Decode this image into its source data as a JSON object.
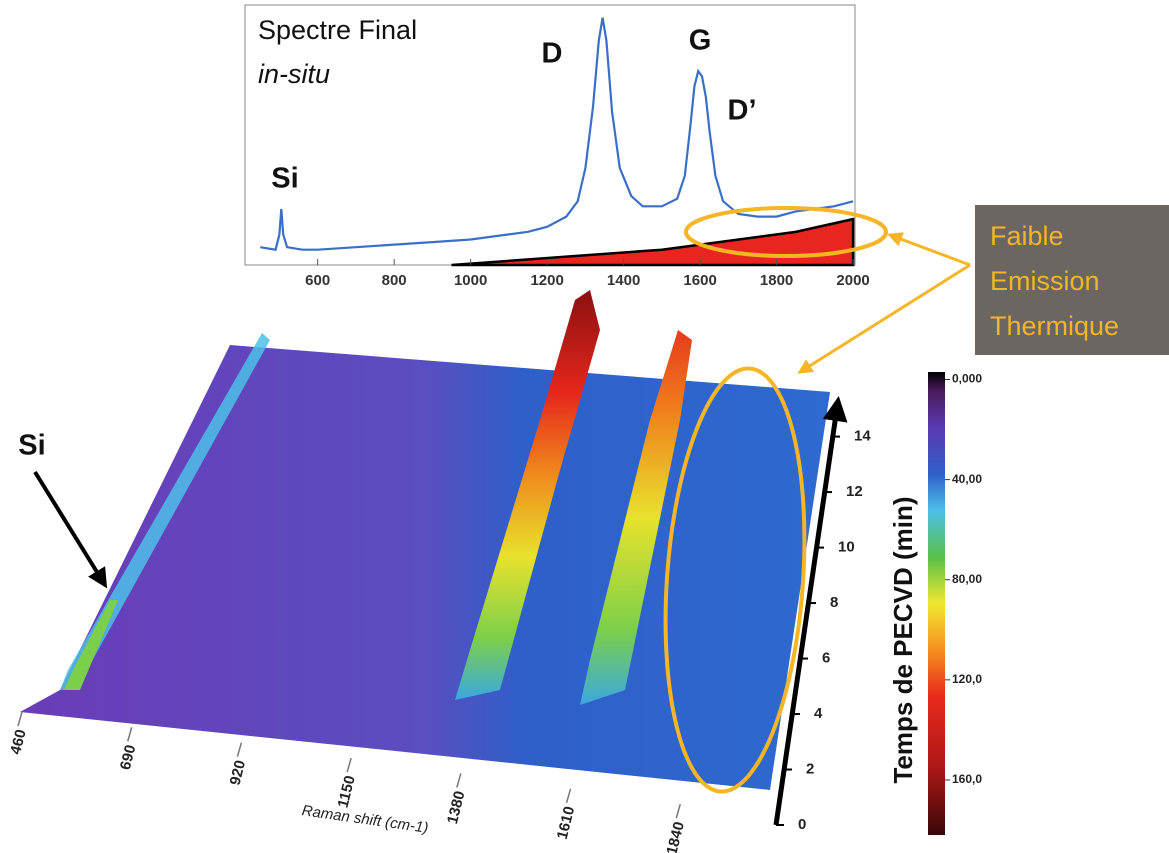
{
  "chart_data": [
    {
      "type": "line",
      "title": "Spectre Final",
      "subtitle": "in-situ",
      "annotations": [
        "Si",
        "D",
        "G",
        "D’"
      ],
      "x": [
        450,
        490,
        500,
        505,
        510,
        520,
        560,
        600,
        700,
        800,
        900,
        1000,
        1100,
        1150,
        1200,
        1250,
        1280,
        1300,
        1320,
        1335,
        1345,
        1355,
        1370,
        1390,
        1420,
        1450,
        1500,
        1540,
        1560,
        1575,
        1585,
        1595,
        1605,
        1615,
        1625,
        1640,
        1660,
        1700,
        1750,
        1800,
        1850,
        1900,
        1950,
        2000
      ],
      "series": [
        {
          "color": "#3a6fc8",
          "values": [
            7,
            6,
            12,
            22,
            12,
            7,
            6,
            6,
            7,
            8,
            9,
            10,
            12,
            13,
            15,
            19,
            25,
            38,
            62,
            88,
            97,
            88,
            60,
            38,
            27,
            23,
            23,
            26,
            35,
            55,
            70,
            76,
            74,
            66,
            52,
            35,
            25,
            20,
            19,
            19,
            21,
            22,
            23,
            25
          ]
        },
        {
          "color": "#e8261f",
          "x": [
            950,
            1500,
            1850,
            2000
          ],
          "values": [
            0,
            6,
            13,
            18
          ]
        }
      ],
      "xlim": [
        410,
        2005
      ],
      "xticks": [
        600,
        800,
        1000,
        1200,
        1400,
        1600,
        1800,
        2000
      ],
      "ylim": [
        0,
        100
      ]
    },
    {
      "type": "surface",
      "annotations": [
        "Si"
      ],
      "xlabel": "Raman shift (cm-1)",
      "ylabel": "Temps de PECVD (min)",
      "xlim": [
        450,
        2050
      ],
      "xticks": [
        460,
        690,
        920,
        1150,
        1380,
        1610,
        1840
      ],
      "ylim": [
        0,
        15.5
      ],
      "yticks": [
        0,
        2,
        4,
        6,
        8,
        10,
        12,
        14
      ],
      "clim": [
        -3,
        182
      ],
      "cticks": [
        {
          "value": 0,
          "label": "0,000"
        },
        {
          "value": 40,
          "label": "40,00"
        },
        {
          "value": 80,
          "label": "80,00"
        },
        {
          "value": 120,
          "label": "120,0"
        },
        {
          "value": 160,
          "label": "160,0"
        }
      ]
    }
  ],
  "callout": {
    "lines": [
      "Faible",
      "Emission",
      "Thermique"
    ]
  }
}
